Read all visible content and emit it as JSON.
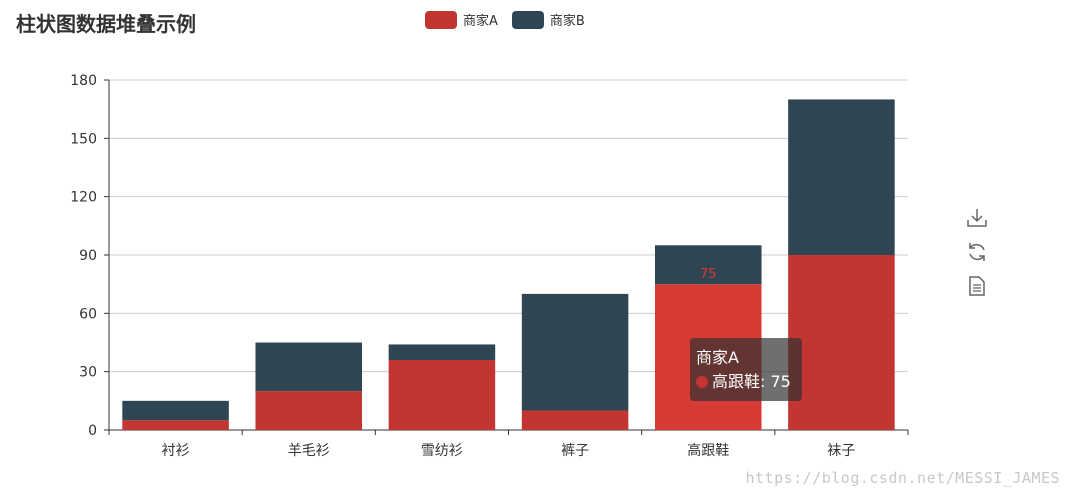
{
  "chart_data": {
    "type": "bar",
    "stacked": true,
    "title": "柱状图数据堆叠示例",
    "categories": [
      "衬衫",
      "羊毛衫",
      "雪纺衫",
      "裤子",
      "高跟鞋",
      "袜子"
    ],
    "series": [
      {
        "name": "商家A",
        "color": "#c23531",
        "values": [
          5,
          20,
          36,
          10,
          75,
          90
        ]
      },
      {
        "name": "商家B",
        "color": "#2f4554",
        "values": [
          10,
          25,
          8,
          60,
          20,
          80
        ]
      }
    ],
    "ylim": [
      0,
      180
    ],
    "yticks": [
      0,
      30,
      60,
      90,
      120,
      150,
      180
    ],
    "grid": true,
    "legend_position": "top-center",
    "highlight": {
      "series": 0,
      "category": 4,
      "label": "75",
      "color": "#d53a35"
    }
  },
  "tooltip": {
    "series_name": "商家A",
    "item_text": "高跟鞋: 75",
    "dot_color": "#c23531"
  },
  "toolbox": {
    "icons": [
      "download-icon",
      "refresh-icon",
      "data-view-icon"
    ]
  },
  "watermark": "https://blog.csdn.net/MESSI_JAMES"
}
